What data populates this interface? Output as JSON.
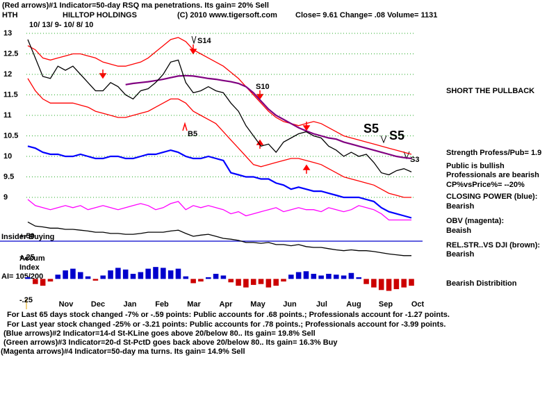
{
  "header": {
    "line1": "(Red arrows)#1 Indicator=50-day RSQ ma penetrations. Its gain= 20% Sell",
    "symbol": "HTH",
    "company": "HILLTOP HOLDINGS",
    "copyright": "(C) 2010 www.tigersoft.com",
    "quote": "Close=  9.61 Change= .08 Volume= 1131",
    "dates": "10/ 13/ 9- 10/ 8/ 10"
  },
  "annotations": [
    "S14",
    "B5",
    "S10",
    "S5",
    "S5",
    "S3",
    "Insider Buying",
    "Accum",
    "Index",
    "AI= 105/200"
  ],
  "notes": [
    "SHORT THE PULLBACK",
    "Strength Profess/Pub= 1.9",
    "Public is bullish",
    "Professionals are bearish",
    "CP%vsPrice%= --20%",
    "CLOSING POWER (blue):",
    "Bearish",
    "OBV (magenta):",
    "Beaish",
    "REL.STR..VS DJI (brown):",
    "Bearish",
    "Bearish Distribition"
  ],
  "footer": [
    "For Last 65 days stock changed -7% or -.59 points:  Public accounts for  .68 points.;  Professionals account for -1.27 points.",
    "For Last year stock changed -25% or -3.21 points:  Public accounts for  .78 points.;  Professionals account for -3.99 points.",
    "(Blue arrows)#2 Indicator=14-d St-KLine goes above 20/below 80.. Its gain= 19.8% Sell",
    "(Green arrows)#3 Indicator=20-d St-PctD goes back above 20/below 80.. Its gain= 16.3% Buy",
    "(Magenta arrows)#4 Indicator=50-day ma turns. Its gain= 14.9% Sell"
  ],
  "chart_data": [
    {
      "type": "line",
      "ylim": [
        7.5,
        13
      ],
      "yticks": [
        13,
        12.5,
        12,
        11.5,
        11,
        10.5,
        10,
        9.5,
        9
      ],
      "grid": true,
      "xtick_labels": [
        "Nov",
        "Dec",
        "Jan",
        "Feb",
        "Mar",
        "Apr",
        "May",
        "Jun",
        "Jul",
        "Aug",
        "Sep",
        "Oct"
      ],
      "series": [
        {
          "color": "#ff0000",
          "values": [
            12.7,
            12.6,
            12.4,
            12.35,
            12.4,
            12.45,
            12.5,
            12.5,
            12.45,
            12.4,
            12.3,
            12.25,
            12.2,
            12.2,
            12.25,
            12.3,
            12.4,
            12.55,
            12.7,
            12.85,
            12.9,
            12.8,
            12.6,
            12.5,
            12.4,
            12.3,
            12.2,
            12.05,
            11.9,
            11.7,
            11.5,
            11.3,
            11.1,
            10.95,
            10.85,
            10.8,
            10.75,
            10.8,
            10.85,
            10.8,
            10.7,
            10.6,
            10.5,
            10.45,
            10.4,
            10.35,
            10.3,
            10.25,
            10.2,
            10.15,
            10.1,
            10.05
          ]
        },
        {
          "color": "#ff0000",
          "values": [
            11.9,
            11.6,
            11.4,
            11.3,
            11.3,
            11.3,
            11.3,
            11.25,
            11.2,
            11.1,
            11.05,
            11.0,
            10.95,
            10.95,
            11.0,
            11.05,
            11.1,
            11.2,
            11.3,
            11.4,
            11.4,
            11.3,
            11.1,
            11.0,
            10.9,
            10.8,
            10.6,
            10.4,
            10.2,
            10.0,
            9.8,
            9.75,
            9.8,
            9.85,
            9.9,
            9.95,
            9.95,
            9.9,
            9.85,
            9.8,
            9.7,
            9.6,
            9.5,
            9.45,
            9.4,
            9.35,
            9.3,
            9.2,
            9.1,
            9.05,
            9.0,
            9.0
          ]
        },
        {
          "color": "#800080",
          "values": [
            null,
            null,
            null,
            null,
            null,
            null,
            null,
            null,
            null,
            null,
            null,
            null,
            null,
            11.75,
            11.78,
            11.8,
            11.82,
            11.85,
            11.88,
            11.92,
            11.96,
            11.97,
            11.96,
            11.93,
            11.9,
            11.88,
            11.85,
            11.82,
            11.78,
            11.7,
            11.55,
            11.35,
            11.15,
            11.0,
            10.9,
            10.8,
            10.7,
            10.62,
            10.55,
            10.5,
            10.45,
            10.42,
            10.35,
            10.3,
            10.25,
            10.2,
            10.15,
            10.1,
            10.05,
            10.0,
            9.97,
            9.95
          ]
        },
        {
          "color": "#000000",
          "values": [
            12.85,
            12.4,
            11.95,
            11.9,
            12.2,
            12.1,
            12.2,
            12.0,
            11.8,
            11.6,
            11.6,
            11.8,
            11.7,
            11.5,
            11.4,
            11.6,
            11.65,
            11.8,
            12.0,
            12.3,
            12.35,
            11.8,
            11.55,
            11.6,
            11.7,
            11.6,
            11.55,
            11.3,
            11.1,
            10.75,
            10.5,
            10.25,
            10.3,
            10.1,
            10.35,
            10.45,
            10.55,
            10.6,
            10.5,
            10.45,
            10.25,
            10.15,
            10.0,
            10.1,
            10.0,
            10.05,
            9.85,
            9.6,
            9.55,
            9.65,
            9.7,
            9.62
          ]
        },
        {
          "color": "#0000ff",
          "values": [
            10.25,
            10.2,
            10.1,
            10.05,
            10.05,
            10.0,
            10.0,
            10.05,
            10.0,
            9.95,
            9.95,
            10.0,
            10.0,
            9.95,
            9.95,
            10.0,
            10.05,
            10.05,
            10.1,
            10.15,
            10.1,
            10.0,
            9.95,
            9.95,
            10.0,
            9.95,
            9.9,
            9.6,
            9.55,
            9.5,
            9.5,
            9.45,
            9.45,
            9.35,
            9.3,
            9.2,
            9.25,
            9.2,
            9.15,
            9.15,
            9.1,
            9.05,
            9.0,
            9.0,
            9.0,
            8.95,
            8.9,
            8.75,
            8.65,
            8.6,
            8.55,
            8.5
          ]
        },
        {
          "color": "#ff00ff",
          "values": [
            8.95,
            8.8,
            8.75,
            8.7,
            8.75,
            8.8,
            8.75,
            8.8,
            8.7,
            8.75,
            8.8,
            8.75,
            8.7,
            8.75,
            8.8,
            8.85,
            8.8,
            8.7,
            8.75,
            8.85,
            8.9,
            8.7,
            8.8,
            8.75,
            8.8,
            8.75,
            8.7,
            8.6,
            8.65,
            8.55,
            8.6,
            8.65,
            8.7,
            8.75,
            8.65,
            8.7,
            8.75,
            8.7,
            8.7,
            8.65,
            8.75,
            8.7,
            8.65,
            8.7,
            8.8,
            8.75,
            8.7,
            8.6,
            8.45,
            8.45,
            8.45,
            8.45
          ]
        },
        {
          "color": "#000000",
          "values": [
            8.4,
            8.3,
            8.28,
            8.25,
            8.25,
            8.22,
            8.22,
            8.2,
            8.18,
            8.15,
            8.15,
            8.12,
            8.12,
            8.1,
            8.1,
            8.12,
            8.15,
            8.15,
            8.15,
            8.18,
            8.2,
            8.12,
            8.05,
            8.08,
            8.1,
            8.05,
            8.0,
            7.98,
            7.95,
            7.9,
            7.9,
            7.88,
            7.9,
            7.85,
            7.85,
            7.82,
            7.85,
            7.8,
            7.78,
            7.78,
            7.75,
            7.72,
            7.7,
            7.72,
            7.7,
            7.7,
            7.68,
            7.65,
            7.62,
            7.6,
            7.58,
            7.58
          ]
        }
      ]
    },
    {
      "type": "bar",
      "ylim": [
        -0.25,
        0.5
      ],
      "yticks": [
        {
          "value": 0.5,
          "label": "+.50"
        },
        {
          "value": 0.25,
          "label": "+.25"
        },
        {
          "value": -0.25,
          "label": "-.25"
        }
      ],
      "color": "#0000cc",
      "negative_color": "#cc0000",
      "values": [
        0.02,
        -0.06,
        -0.08,
        -0.03,
        0.05,
        0.1,
        0.12,
        0.08,
        0.03,
        -0.02,
        0.04,
        0.1,
        0.13,
        0.11,
        0.06,
        0.08,
        0.12,
        0.14,
        0.13,
        0.1,
        0.12,
        0.03,
        -0.05,
        -0.03,
        0.02,
        0.06,
        0.04,
        -0.04,
        -0.08,
        -0.1,
        -0.07,
        -0.06,
        -0.1,
        -0.08,
        -0.03,
        0.05,
        0.08,
        0.09,
        0.06,
        0.04,
        0.06,
        0.05,
        0.04,
        0.07,
        0.02,
        -0.06,
        -0.1,
        -0.13,
        -0.14,
        -0.12,
        -0.1,
        -0.08
      ]
    }
  ]
}
